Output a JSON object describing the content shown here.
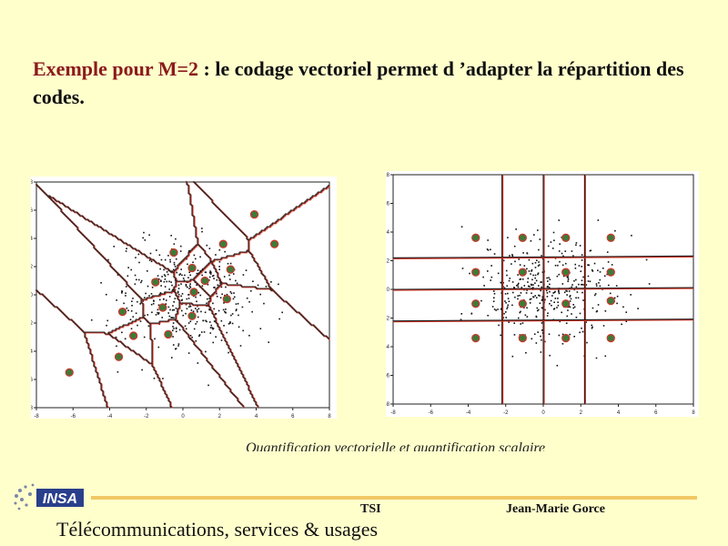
{
  "title": {
    "highlight": "Exemple pour M=2",
    "rest": " : le codage vectoriel permet d ’adapter la répartition des codes."
  },
  "caption": "Quantification vectorielle et quantification scalaire",
  "footer": {
    "left": "Télécommunications, services & usages",
    "middle": "TSI",
    "right": "Jean-Marie Gorce",
    "logo_text": "INSA"
  },
  "colors": {
    "background": "#ffffcc",
    "title_highlight": "#8b1a1a",
    "boundary_red": "#d8392a",
    "boundary_dark": "#1a1a1a",
    "centroid_green": "#2e7d32",
    "footer_rule": "#f2c865"
  },
  "chart_data": [
    {
      "type": "scatter",
      "title": "",
      "xlabel": "",
      "ylabel": "",
      "xlim": [
        -8,
        8
      ],
      "ylim": [
        -8,
        8
      ],
      "xticks": [
        "-8",
        "-6",
        "-4",
        "-2",
        "0",
        "2",
        "4",
        "6",
        "8"
      ],
      "yticks": [
        "-8",
        "-6",
        "-4",
        "-2",
        "0",
        "2",
        "4",
        "6",
        "8"
      ],
      "codewords": [
        {
          "x": 3.9,
          "y": 5.7
        },
        {
          "x": 5.0,
          "y": 3.6
        },
        {
          "x": 2.2,
          "y": 3.6
        },
        {
          "x": -0.5,
          "y": 3.0
        },
        {
          "x": 0.5,
          "y": 1.9
        },
        {
          "x": 2.6,
          "y": 1.8
        },
        {
          "x": -1.5,
          "y": 0.9
        },
        {
          "x": 1.2,
          "y": 1.0
        },
        {
          "x": 0.6,
          "y": 0.2
        },
        {
          "x": 2.4,
          "y": -0.3
        },
        {
          "x": -1.1,
          "y": -0.9
        },
        {
          "x": -3.3,
          "y": -1.2
        },
        {
          "x": 0.5,
          "y": -1.5
        },
        {
          "x": -0.8,
          "y": -2.8
        },
        {
          "x": -2.7,
          "y": -2.9
        },
        {
          "x": -3.5,
          "y": -4.4
        },
        {
          "x": -6.2,
          "y": -5.5
        }
      ]
    },
    {
      "type": "scatter",
      "title": "",
      "xlabel": "",
      "ylabel": "",
      "xlim": [
        -8,
        8
      ],
      "ylim": [
        -8,
        8
      ],
      "xticks": [
        "-8",
        "-6",
        "-4",
        "-2",
        "0",
        "2",
        "4",
        "6",
        "8"
      ],
      "yticks": [
        "-8",
        "-6",
        "-4",
        "-2",
        "0",
        "2",
        "4",
        "6",
        "8"
      ],
      "x_boundaries": [
        -2.2,
        0,
        2.2
      ],
      "y_boundaries": [
        2.2,
        0,
        -2.2
      ],
      "codewords": [
        {
          "x": -3.6,
          "y": 3.6
        },
        {
          "x": -1.1,
          "y": 3.6
        },
        {
          "x": 1.2,
          "y": 3.6
        },
        {
          "x": 3.6,
          "y": 3.6
        },
        {
          "x": -3.6,
          "y": 1.2
        },
        {
          "x": -1.1,
          "y": 1.2
        },
        {
          "x": 1.2,
          "y": 1.2
        },
        {
          "x": 3.6,
          "y": 1.2
        },
        {
          "x": -3.6,
          "y": -1.0
        },
        {
          "x": -1.1,
          "y": -1.0
        },
        {
          "x": 1.2,
          "y": -1.0
        },
        {
          "x": 3.6,
          "y": -0.8
        },
        {
          "x": -3.6,
          "y": -3.4
        },
        {
          "x": -1.1,
          "y": -3.4
        },
        {
          "x": 1.2,
          "y": -3.4
        },
        {
          "x": 3.6,
          "y": -3.4
        }
      ]
    }
  ]
}
